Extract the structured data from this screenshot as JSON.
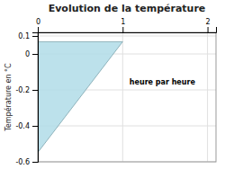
{
  "chart_data": {
    "type": "polygon",
    "title": "Evolution de la température",
    "y_label": "Température en °C",
    "x": [
      0,
      0,
      1
    ],
    "values": [
      0.068,
      -0.548,
      0.068
    ],
    "color": "#b0dce8",
    "xlim": [
      0,
      2.1
    ],
    "ylim": [
      -0.6,
      0.12
    ],
    "xticks": [
      0,
      1,
      2
    ],
    "yticks": [
      -0.6,
      -0.4,
      -0.2,
      0,
      0.1
    ],
    "grid": true,
    "annotations": [
      {
        "text": "heure par heure",
        "x": 1.08,
        "y": -0.17
      }
    ]
  }
}
